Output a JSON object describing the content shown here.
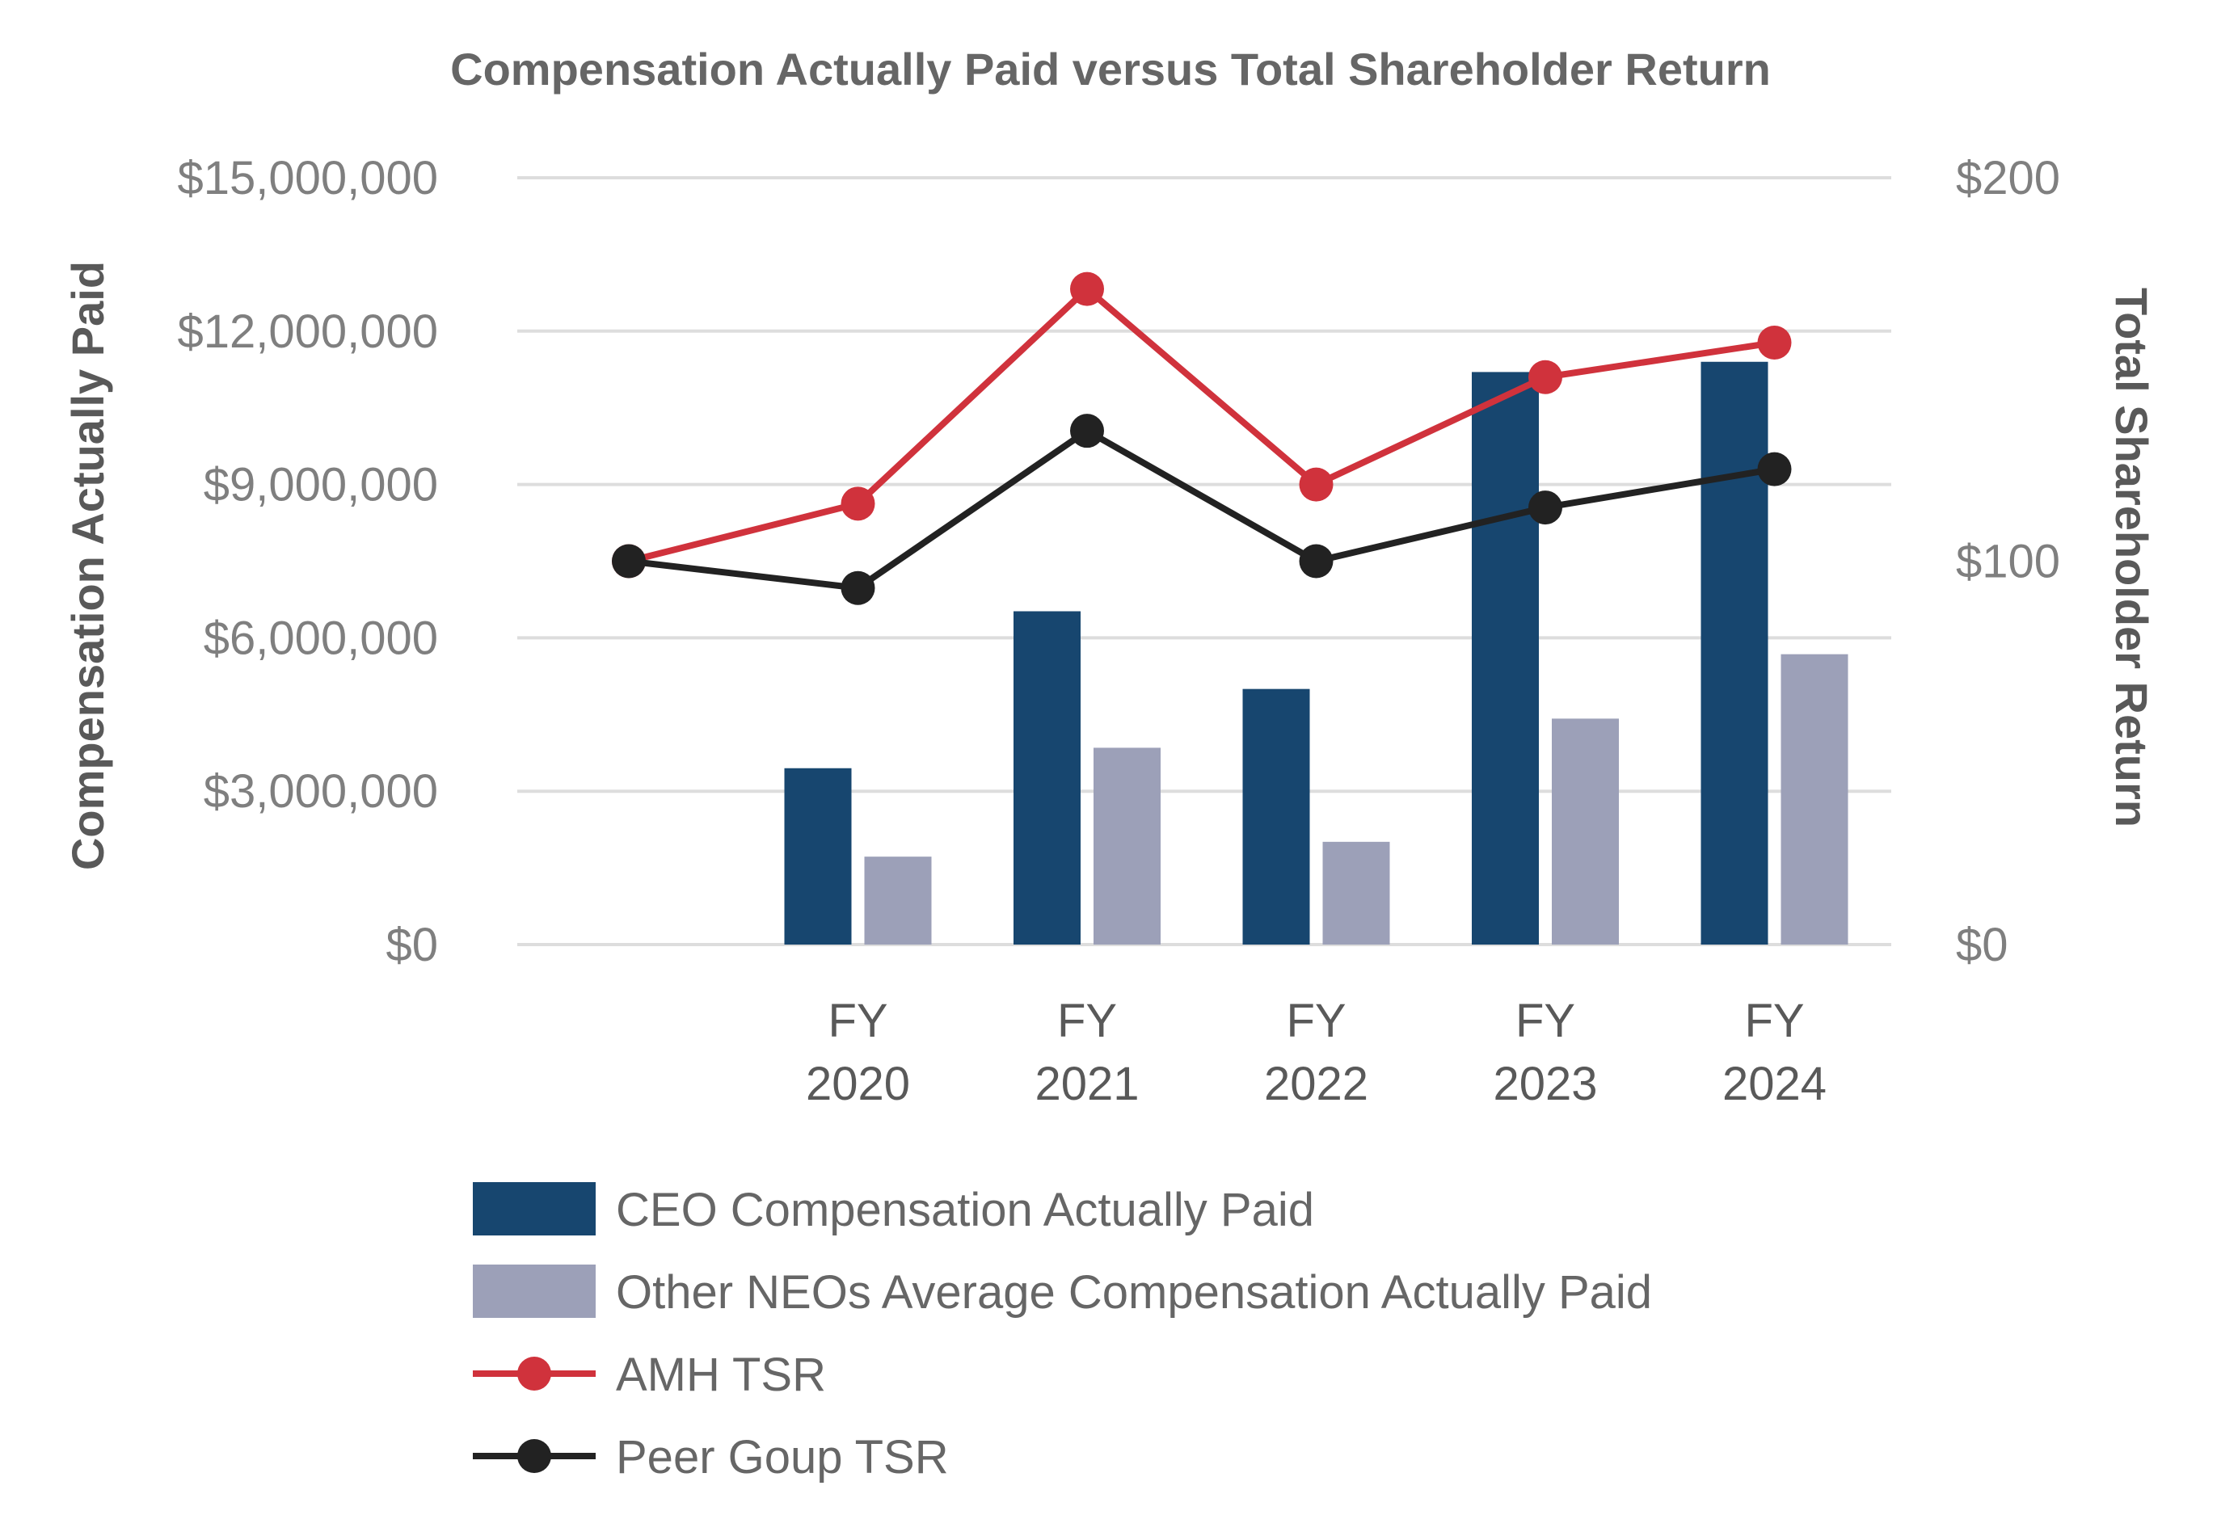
{
  "chart_data": {
    "type": "bar",
    "title": "Compensation Actually Paid versus Total Shareholder Return",
    "ylabel_left": "Compensation Actually Paid",
    "ylabel_right": "Total Shareholder Return",
    "ylim_left": [
      0,
      15000000
    ],
    "ylim_right": [
      0,
      200
    ],
    "left_ticks": [
      "$0",
      "$3,000,000",
      "$6,000,000",
      "$9,000,000",
      "$12,000,000",
      "$15,000,000"
    ],
    "left_tick_values": [
      0,
      3000000,
      6000000,
      9000000,
      12000000,
      15000000
    ],
    "right_ticks": [
      "$0",
      "$100",
      "$200"
    ],
    "right_tick_values": [
      0,
      100,
      200
    ],
    "grid": true,
    "categories": [
      {
        "line1": "",
        "line2": ""
      },
      {
        "line1": "FY",
        "line2": "2020"
      },
      {
        "line1": "FY",
        "line2": "2021"
      },
      {
        "line1": "FY",
        "line2": "2022"
      },
      {
        "line1": "FY",
        "line2": "2023"
      },
      {
        "line1": "FY",
        "line2": "2024"
      }
    ],
    "bar_series": [
      {
        "name": "CEO Compensation Actually Paid",
        "color": "#17466f",
        "values": [
          null,
          3450000,
          6520000,
          5000000,
          11200000,
          11400000
        ]
      },
      {
        "name": "Other NEOs Average Compensation Actually Paid",
        "color": "#9ca0b8",
        "values": [
          null,
          1720000,
          3850000,
          2010000,
          4420000,
          5680000
        ]
      }
    ],
    "line_series": [
      {
        "name": "AMH TSR",
        "color": "#d0323c",
        "values": [
          100,
          115,
          171,
          120,
          148,
          157
        ]
      },
      {
        "name": "Peer Goup TSR",
        "color": "#222222",
        "values": [
          100,
          93,
          134,
          100,
          114,
          124
        ]
      }
    ],
    "legend_position": "bottom"
  }
}
